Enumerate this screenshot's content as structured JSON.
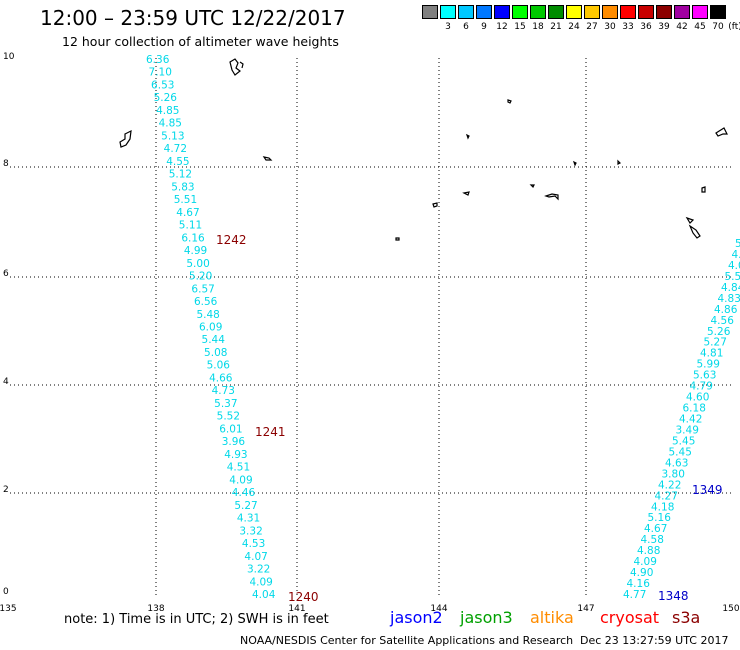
{
  "title": "12:00 – 23:59 UTC 12/22/2017",
  "subtitle": "12 hour collection of altimeter wave heights",
  "legend": {
    "unit": "(ft)",
    "items": [
      {
        "label": "",
        "color": "#808080"
      },
      {
        "label": "3",
        "color": "#00ffff"
      },
      {
        "label": "6",
        "color": "#00c8ff"
      },
      {
        "label": "9",
        "color": "#0078ff"
      },
      {
        "label": "12",
        "color": "#0000ff"
      },
      {
        "label": "15",
        "color": "#00ff00"
      },
      {
        "label": "18",
        "color": "#00c800"
      },
      {
        "label": "21",
        "color": "#008c00"
      },
      {
        "label": "24",
        "color": "#ffff00"
      },
      {
        "label": "27",
        "color": "#ffc800"
      },
      {
        "label": "30",
        "color": "#ff8c00"
      },
      {
        "label": "33",
        "color": "#ff0000"
      },
      {
        "label": "36",
        "color": "#c80000"
      },
      {
        "label": "39",
        "color": "#8c0000"
      },
      {
        "label": "42",
        "color": "#a000a0"
      },
      {
        "label": "45",
        "color": "#ff00ff"
      },
      {
        "label": "70",
        "color": "#000000"
      }
    ]
  },
  "map": {
    "lon_ticks": [
      "135",
      "138",
      "141",
      "144",
      "147",
      "150"
    ],
    "lat_ticks": [
      "0",
      "2",
      "4",
      "6",
      "8",
      "10"
    ],
    "track_west": [
      "6.36",
      "7.10",
      "6.53",
      "5.26",
      "4.85",
      "4.85",
      "5.13",
      "4.72",
      "4.55",
      "5.12",
      "5.83",
      "5.51",
      "4.67",
      "5.11",
      "6.16",
      "4.99",
      "5.00",
      "5.20",
      "6.57",
      "6.56",
      "5.48",
      "6.09",
      "5.44",
      "5.08",
      "5.06",
      "4.66",
      "4.73",
      "5.37",
      "5.52",
      "6.01",
      "3.96",
      "4.93",
      "4.51",
      "4.09",
      "4.46",
      "5.27",
      "4.31",
      "3.32",
      "4.53",
      "4.07",
      "3.22",
      "4.09",
      "4.04"
    ],
    "track_east": [
      "4.77",
      "4.16",
      "4.90",
      "4.09",
      "4.88",
      "4.58",
      "4.67",
      "5.16",
      "4.18",
      "4.27",
      "4.22",
      "3.80",
      "4.63",
      "5.45",
      "5.45",
      "3.49",
      "4.42",
      "6.18",
      "4.60",
      "4.79",
      "5.63",
      "5.99",
      "4.81",
      "5.27",
      "5.26",
      "4.56",
      "4.86",
      "4.83",
      "4.84",
      "5.5",
      "4.0",
      "4.",
      "5."
    ],
    "pass_labels": [
      {
        "text": "1242",
        "color": "#8b0000"
      },
      {
        "text": "1241",
        "color": "#8b0000"
      },
      {
        "text": "1240",
        "color": "#8b0000"
      },
      {
        "text": "1349",
        "color": "#0000c8"
      },
      {
        "text": "1348",
        "color": "#0000c8"
      }
    ]
  },
  "footer": {
    "note": "note: 1) Time is in UTC; 2) SWH is in feet",
    "satellites": [
      {
        "name": "jason2",
        "color": "#0000ff"
      },
      {
        "name": "jason3",
        "color": "#00a000"
      },
      {
        "name": "altika",
        "color": "#ff8c00"
      },
      {
        "name": "cryosat",
        "color": "#ff0000"
      },
      {
        "name": "s3a",
        "color": "#8b0000"
      }
    ],
    "credit": "NOAA/NESDIS Center for Satellite Applications and Research",
    "timestamp": "Dec 23 13:27:59 UTC 2017"
  }
}
